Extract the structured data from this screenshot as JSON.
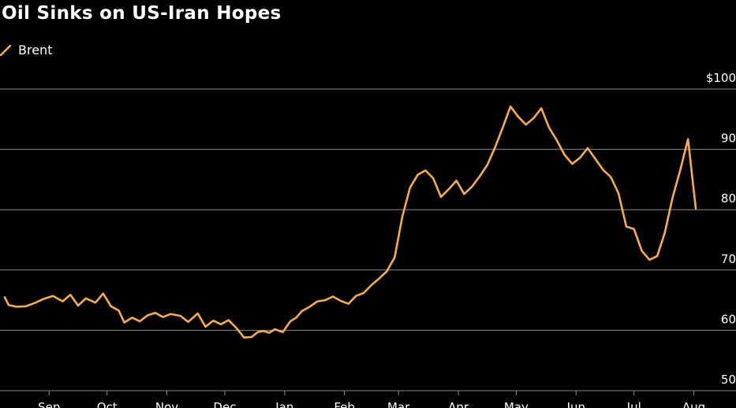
{
  "colors": {
    "background": "#000000",
    "line": "#fbad3c",
    "grid": "#8a8a8a",
    "text": "#ffffff"
  },
  "chart_data": {
    "type": "line",
    "title": "Oil Sinks on US-Iran Hopes",
    "legend": {
      "entries": [
        "Brent"
      ],
      "placement": "top-left"
    },
    "grid": true,
    "ylim": [
      45,
      100
    ],
    "y_ticks": [
      100,
      90,
      80,
      70,
      60,
      50
    ],
    "y_tick_labels": [
      "$100",
      "90",
      "80",
      "70",
      "60",
      "50"
    ],
    "x_ticks": [
      "Sep",
      "Oct",
      "Nov",
      "Dec",
      "Jan",
      "Feb",
      "Mar",
      "Apr",
      "May",
      "Jun",
      "Jul",
      "Aug"
    ],
    "x_tick_positions": [
      "2025-09-01",
      "2025-10-01",
      "2025-11-01",
      "2025-12-01",
      "2026-01-01",
      "2026-02-01",
      "2026-03-01",
      "2026-04-01",
      "2026-05-01",
      "2026-06-01",
      "2026-07-01",
      "2026-08-01"
    ],
    "series": [
      {
        "name": "Brent",
        "x": [
          "2025-08-09",
          "2025-08-11",
          "2025-08-15",
          "2025-08-20",
          "2025-08-25",
          "2025-08-29",
          "2025-09-03",
          "2025-09-08",
          "2025-09-12",
          "2025-09-16",
          "2025-09-20",
          "2025-09-25",
          "2025-09-29",
          "2025-10-03",
          "2025-10-07",
          "2025-10-10",
          "2025-10-14",
          "2025-10-18",
          "2025-10-22",
          "2025-10-26",
          "2025-10-30",
          "2025-11-03",
          "2025-11-08",
          "2025-11-12",
          "2025-11-17",
          "2025-11-21",
          "2025-11-25",
          "2025-11-29",
          "2025-12-03",
          "2025-12-07",
          "2025-12-11",
          "2025-12-15",
          "2025-12-18",
          "2025-12-21",
          "2025-12-24",
          "2025-12-27",
          "2025-12-31",
          "2026-01-04",
          "2026-01-07",
          "2026-01-10",
          "2026-01-14",
          "2026-01-18",
          "2026-01-22",
          "2026-01-26",
          "2026-01-30",
          "2026-02-03",
          "2026-02-07",
          "2026-02-11",
          "2026-02-15",
          "2026-02-19",
          "2026-02-23",
          "2026-02-27",
          "2026-03-03",
          "2026-03-07",
          "2026-03-11",
          "2026-03-15",
          "2026-03-19",
          "2026-03-23",
          "2026-03-27",
          "2026-03-31",
          "2026-04-04",
          "2026-04-08",
          "2026-04-12",
          "2026-04-16",
          "2026-04-20",
          "2026-04-24",
          "2026-04-28",
          "2026-05-02",
          "2026-05-06",
          "2026-05-10",
          "2026-05-14",
          "2026-05-18",
          "2026-05-22",
          "2026-05-26",
          "2026-05-30",
          "2026-06-03",
          "2026-06-07",
          "2026-06-11",
          "2026-06-15",
          "2026-06-19",
          "2026-06-23",
          "2026-06-27",
          "2026-07-01",
          "2026-07-05",
          "2026-07-09",
          "2026-07-13",
          "2026-07-17",
          "2026-07-21",
          "2026-07-25",
          "2026-07-29",
          "2026-08-02"
        ],
        "y": [
          65.5,
          64.2,
          63.9,
          64.0,
          64.6,
          65.2,
          65.7,
          64.8,
          65.9,
          64.1,
          65.3,
          64.6,
          66.1,
          64.0,
          63.3,
          61.3,
          62.1,
          61.5,
          62.5,
          62.9,
          62.2,
          62.7,
          62.4,
          61.4,
          62.8,
          60.6,
          61.6,
          61.0,
          61.7,
          60.4,
          58.8,
          58.9,
          59.7,
          59.9,
          59.6,
          60.2,
          59.7,
          61.5,
          62.1,
          63.2,
          63.9,
          64.8,
          65.0,
          65.6,
          64.9,
          64.4,
          65.7,
          66.2,
          67.5,
          68.6,
          69.8,
          72.1,
          78.9,
          83.7,
          85.8,
          86.5,
          85.2,
          82.1,
          83.4,
          84.8,
          82.6,
          83.8,
          85.5,
          87.4,
          90.3,
          93.6,
          97.1,
          95.4,
          94.1,
          95.2,
          96.8,
          93.6,
          91.5,
          89.1,
          87.6,
          88.6,
          90.2,
          88.4,
          86.6,
          85.4,
          82.7,
          77.2,
          76.8,
          73.2,
          71.7,
          72.3,
          76.2,
          82.0,
          86.6,
          91.7,
          80.2
        ]
      }
    ]
  }
}
